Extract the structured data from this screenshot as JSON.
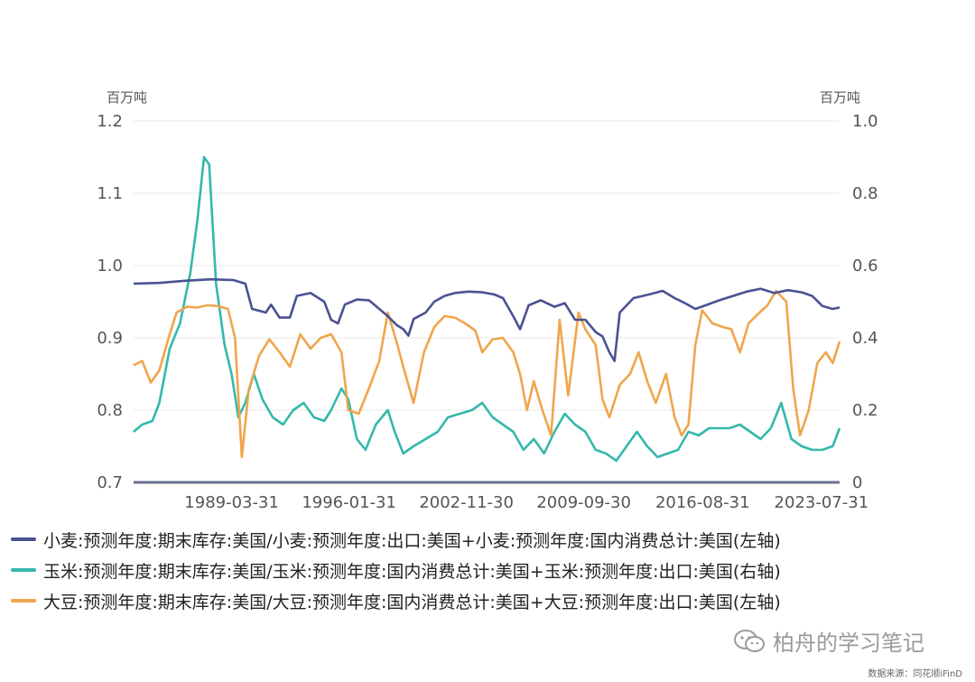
{
  "chart_data": {
    "type": "line",
    "left_axis": {
      "unit": "百万吨",
      "ylim": [
        0.7,
        1.2
      ],
      "ticks": [
        "0.7",
        "0.8",
        "0.9",
        "1.0",
        "1.1",
        "1.2"
      ]
    },
    "right_axis": {
      "unit": "百万吨",
      "ylim": [
        0,
        1.0
      ],
      "ticks": [
        "0",
        "0.2",
        "0.4",
        "0.6",
        "0.8",
        "1.0"
      ]
    },
    "x_ticks": [
      "1989-03-31",
      "1996-01-31",
      "2002-11-30",
      "2009-09-30",
      "2016-08-31",
      "2023-07-31"
    ],
    "x_range": [
      1983.5,
      2024.6
    ],
    "grid": "horizontal",
    "legend_position": "bottom",
    "series": [
      {
        "name": "小麦:预测年度:期末库存:美国/小麦:预测年度:出口:美国+小麦:预测年度:国内消费总计:美国(左轴)",
        "color": "#4a5293",
        "axis": "left",
        "points": [
          [
            1983.5,
            0.975
          ],
          [
            1985.0,
            0.976
          ],
          [
            1986.5,
            0.979
          ],
          [
            1988.0,
            0.981
          ],
          [
            1989.3,
            0.98
          ],
          [
            1990.0,
            0.975
          ],
          [
            1990.4,
            0.94
          ],
          [
            1991.2,
            0.935
          ],
          [
            1991.5,
            0.946
          ],
          [
            1992.0,
            0.928
          ],
          [
            1992.6,
            0.928
          ],
          [
            1993.0,
            0.958
          ],
          [
            1993.8,
            0.962
          ],
          [
            1994.6,
            0.95
          ],
          [
            1995.0,
            0.925
          ],
          [
            1995.4,
            0.92
          ],
          [
            1995.8,
            0.946
          ],
          [
            1996.5,
            0.953
          ],
          [
            1997.2,
            0.952
          ],
          [
            1997.8,
            0.94
          ],
          [
            1998.3,
            0.93
          ],
          [
            1998.8,
            0.918
          ],
          [
            1999.2,
            0.912
          ],
          [
            1999.5,
            0.903
          ],
          [
            1999.8,
            0.926
          ],
          [
            2000.5,
            0.935
          ],
          [
            2001.0,
            0.95
          ],
          [
            2001.6,
            0.958
          ],
          [
            2002.2,
            0.962
          ],
          [
            2003.0,
            0.964
          ],
          [
            2003.8,
            0.963
          ],
          [
            2004.5,
            0.96
          ],
          [
            2005.0,
            0.955
          ],
          [
            2005.6,
            0.93
          ],
          [
            2006.0,
            0.912
          ],
          [
            2006.5,
            0.945
          ],
          [
            2007.2,
            0.952
          ],
          [
            2008.0,
            0.943
          ],
          [
            2008.6,
            0.948
          ],
          [
            2009.2,
            0.925
          ],
          [
            2009.8,
            0.925
          ],
          [
            2010.4,
            0.908
          ],
          [
            2010.8,
            0.902
          ],
          [
            2011.2,
            0.88
          ],
          [
            2011.5,
            0.868
          ],
          [
            2011.8,
            0.935
          ],
          [
            2012.6,
            0.955
          ],
          [
            2013.5,
            0.96
          ],
          [
            2014.3,
            0.965
          ],
          [
            2015.0,
            0.955
          ],
          [
            2015.6,
            0.948
          ],
          [
            2016.2,
            0.94
          ],
          [
            2016.8,
            0.945
          ],
          [
            2017.6,
            0.952
          ],
          [
            2018.4,
            0.958
          ],
          [
            2019.2,
            0.964
          ],
          [
            2020.0,
            0.968
          ],
          [
            2020.8,
            0.962
          ],
          [
            2021.6,
            0.966
          ],
          [
            2022.4,
            0.963
          ],
          [
            2023.0,
            0.958
          ],
          [
            2023.6,
            0.944
          ],
          [
            2024.2,
            0.94
          ],
          [
            2024.6,
            0.942
          ]
        ]
      },
      {
        "name": "玉米:预测年度:期末库存:美国/玉米:预测年度:国内消费总计:美国+玉米:预测年度:出口:美国(右轴)",
        "color": "#35b8ab",
        "axis": "right",
        "points": [
          [
            1983.5,
            0.14
          ],
          [
            1984.0,
            0.16
          ],
          [
            1984.6,
            0.17
          ],
          [
            1985.0,
            0.22
          ],
          [
            1985.6,
            0.37
          ],
          [
            1986.2,
            0.44
          ],
          [
            1986.8,
            0.58
          ],
          [
            1987.2,
            0.72
          ],
          [
            1987.6,
            0.9
          ],
          [
            1987.9,
            0.88
          ],
          [
            1988.3,
            0.55
          ],
          [
            1988.8,
            0.38
          ],
          [
            1989.2,
            0.3
          ],
          [
            1989.6,
            0.18
          ],
          [
            1990.0,
            0.22
          ],
          [
            1990.5,
            0.3
          ],
          [
            1991.0,
            0.23
          ],
          [
            1991.6,
            0.18
          ],
          [
            1992.2,
            0.16
          ],
          [
            1992.8,
            0.2
          ],
          [
            1993.4,
            0.22
          ],
          [
            1994.0,
            0.18
          ],
          [
            1994.6,
            0.17
          ],
          [
            1995.0,
            0.2
          ],
          [
            1995.6,
            0.26
          ],
          [
            1996.0,
            0.23
          ],
          [
            1996.5,
            0.12
          ],
          [
            1997.0,
            0.09
          ],
          [
            1997.6,
            0.16
          ],
          [
            1998.3,
            0.2
          ],
          [
            1998.7,
            0.14
          ],
          [
            1999.2,
            0.08
          ],
          [
            1999.8,
            0.1
          ],
          [
            2000.5,
            0.12
          ],
          [
            2001.2,
            0.14
          ],
          [
            2001.8,
            0.18
          ],
          [
            2002.5,
            0.19
          ],
          [
            2003.2,
            0.2
          ],
          [
            2003.8,
            0.22
          ],
          [
            2004.4,
            0.18
          ],
          [
            2005.0,
            0.16
          ],
          [
            2005.6,
            0.14
          ],
          [
            2006.2,
            0.09
          ],
          [
            2006.8,
            0.12
          ],
          [
            2007.4,
            0.08
          ],
          [
            2008.0,
            0.14
          ],
          [
            2008.6,
            0.19
          ],
          [
            2009.2,
            0.16
          ],
          [
            2009.8,
            0.14
          ],
          [
            2010.4,
            0.09
          ],
          [
            2011.0,
            0.08
          ],
          [
            2011.6,
            0.06
          ],
          [
            2012.2,
            0.1
          ],
          [
            2012.8,
            0.14
          ],
          [
            2013.4,
            0.1
          ],
          [
            2014.0,
            0.07
          ],
          [
            2014.6,
            0.08
          ],
          [
            2015.2,
            0.09
          ],
          [
            2015.8,
            0.14
          ],
          [
            2016.4,
            0.13
          ],
          [
            2017.0,
            0.15
          ],
          [
            2017.6,
            0.15
          ],
          [
            2018.2,
            0.15
          ],
          [
            2018.8,
            0.16
          ],
          [
            2019.4,
            0.14
          ],
          [
            2020.0,
            0.12
          ],
          [
            2020.6,
            0.15
          ],
          [
            2021.2,
            0.22
          ],
          [
            2021.8,
            0.12
          ],
          [
            2022.4,
            0.1
          ],
          [
            2023.0,
            0.09
          ],
          [
            2023.6,
            0.09
          ],
          [
            2024.2,
            0.1
          ],
          [
            2024.6,
            0.15
          ]
        ]
      },
      {
        "name": "大豆:预测年度:期末库存:美国/大豆:预测年度:国内消费总计:美国+大豆:预测年度:出口:美国(左轴)",
        "color": "#f0a54c",
        "axis": "left",
        "points": [
          [
            1983.5,
            0.862
          ],
          [
            1984.0,
            0.868
          ],
          [
            1984.5,
            0.838
          ],
          [
            1985.0,
            0.855
          ],
          [
            1985.6,
            0.905
          ],
          [
            1986.0,
            0.935
          ],
          [
            1986.6,
            0.943
          ],
          [
            1987.2,
            0.942
          ],
          [
            1987.8,
            0.945
          ],
          [
            1988.4,
            0.944
          ],
          [
            1989.0,
            0.94
          ],
          [
            1989.4,
            0.9
          ],
          [
            1989.8,
            0.735
          ],
          [
            1990.2,
            0.828
          ],
          [
            1990.8,
            0.875
          ],
          [
            1991.4,
            0.898
          ],
          [
            1992.0,
            0.88
          ],
          [
            1992.6,
            0.86
          ],
          [
            1993.2,
            0.905
          ],
          [
            1993.8,
            0.885
          ],
          [
            1994.4,
            0.9
          ],
          [
            1995.0,
            0.905
          ],
          [
            1995.6,
            0.88
          ],
          [
            1996.0,
            0.8
          ],
          [
            1996.6,
            0.795
          ],
          [
            1997.2,
            0.83
          ],
          [
            1997.8,
            0.868
          ],
          [
            1998.3,
            0.935
          ],
          [
            1998.8,
            0.895
          ],
          [
            1999.2,
            0.86
          ],
          [
            1999.8,
            0.81
          ],
          [
            2000.4,
            0.88
          ],
          [
            2001.0,
            0.915
          ],
          [
            2001.6,
            0.93
          ],
          [
            2002.2,
            0.928
          ],
          [
            2002.8,
            0.92
          ],
          [
            2003.4,
            0.91
          ],
          [
            2003.8,
            0.88
          ],
          [
            2004.4,
            0.898
          ],
          [
            2005.0,
            0.9
          ],
          [
            2005.6,
            0.88
          ],
          [
            2006.0,
            0.85
          ],
          [
            2006.4,
            0.8
          ],
          [
            2006.8,
            0.84
          ],
          [
            2007.3,
            0.8
          ],
          [
            2007.8,
            0.765
          ],
          [
            2008.3,
            0.925
          ],
          [
            2008.8,
            0.82
          ],
          [
            2009.4,
            0.935
          ],
          [
            2009.8,
            0.912
          ],
          [
            2010.4,
            0.89
          ],
          [
            2010.8,
            0.815
          ],
          [
            2011.2,
            0.79
          ],
          [
            2011.8,
            0.835
          ],
          [
            2012.4,
            0.85
          ],
          [
            2012.9,
            0.88
          ],
          [
            2013.4,
            0.84
          ],
          [
            2013.9,
            0.81
          ],
          [
            2014.5,
            0.85
          ],
          [
            2015.0,
            0.79
          ],
          [
            2015.4,
            0.765
          ],
          [
            2015.8,
            0.78
          ],
          [
            2016.2,
            0.89
          ],
          [
            2016.6,
            0.938
          ],
          [
            2017.2,
            0.92
          ],
          [
            2017.8,
            0.915
          ],
          [
            2018.3,
            0.912
          ],
          [
            2018.8,
            0.88
          ],
          [
            2019.3,
            0.92
          ],
          [
            2019.8,
            0.932
          ],
          [
            2020.4,
            0.945
          ],
          [
            2020.9,
            0.965
          ],
          [
            2021.5,
            0.95
          ],
          [
            2021.9,
            0.83
          ],
          [
            2022.3,
            0.765
          ],
          [
            2022.8,
            0.8
          ],
          [
            2023.3,
            0.865
          ],
          [
            2023.8,
            0.88
          ],
          [
            2024.2,
            0.865
          ],
          [
            2024.6,
            0.895
          ]
        ]
      }
    ]
  },
  "watermark": {
    "text": "柏舟的学习笔记",
    "icon": "wechat-icon"
  },
  "source": "数据来源：同花顺iFinD"
}
